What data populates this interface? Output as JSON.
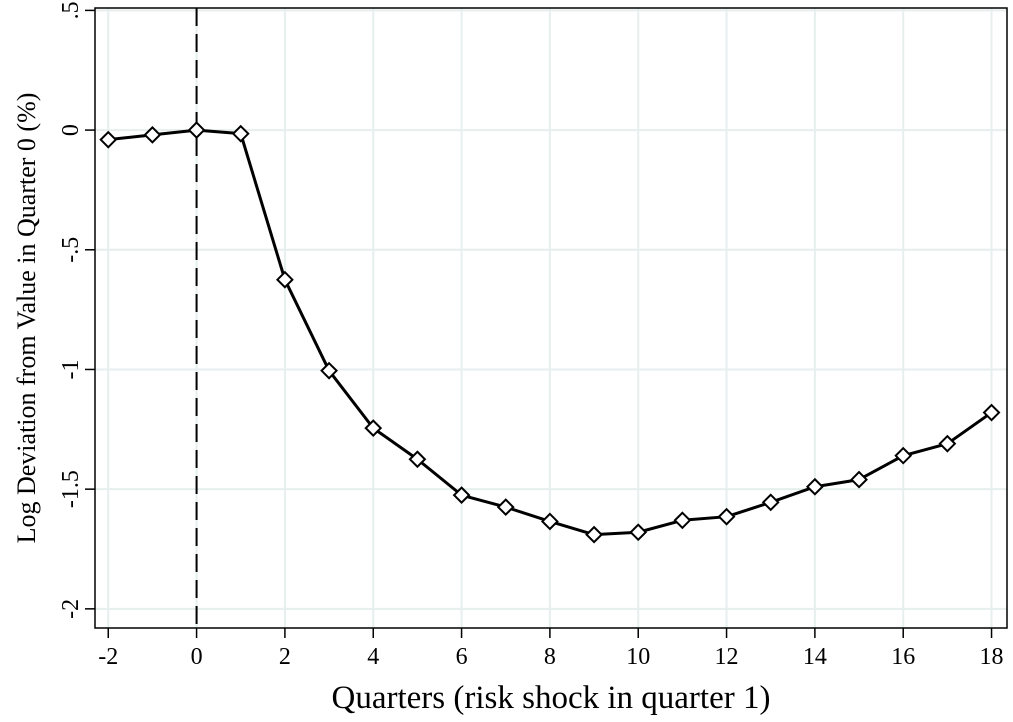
{
  "chart_data": {
    "type": "line",
    "title": "",
    "xlabel": "Quarters (risk shock in quarter 1)",
    "ylabel": "Log Deviation from Value in Quarter 0 (%)",
    "xlim": [
      -2.3,
      18.35
    ],
    "ylim": [
      -2.08,
      0.51
    ],
    "xticks": [
      -2,
      0,
      2,
      4,
      6,
      8,
      10,
      12,
      14,
      16,
      18
    ],
    "xtick_labels": [
      "-2",
      "0",
      "2",
      "4",
      "6",
      "8",
      "10",
      "12",
      "14",
      "16",
      "18"
    ],
    "yticks": [
      0.5,
      0,
      -0.5,
      -1,
      -1.5,
      -2
    ],
    "ytick_labels": [
      ".5",
      "0",
      "-.5",
      "-1",
      "-1.5",
      "-2"
    ],
    "grid": true,
    "reference_line": {
      "x": 0,
      "style": "dashed"
    },
    "series": [
      {
        "marker": "diamond-hollow",
        "x": [
          -2,
          -1,
          0,
          1,
          2,
          3,
          4,
          5,
          6,
          7,
          8,
          9,
          10,
          11,
          12,
          13,
          14,
          15,
          16,
          17,
          18
        ],
        "y": [
          -0.04,
          -0.02,
          0.0,
          -0.015,
          -0.625,
          -1.005,
          -1.245,
          -1.375,
          -1.525,
          -1.575,
          -1.635,
          -1.69,
          -1.68,
          -1.63,
          -1.615,
          -1.555,
          -1.49,
          -1.46,
          -1.36,
          -1.31,
          -1.18
        ]
      }
    ]
  }
}
